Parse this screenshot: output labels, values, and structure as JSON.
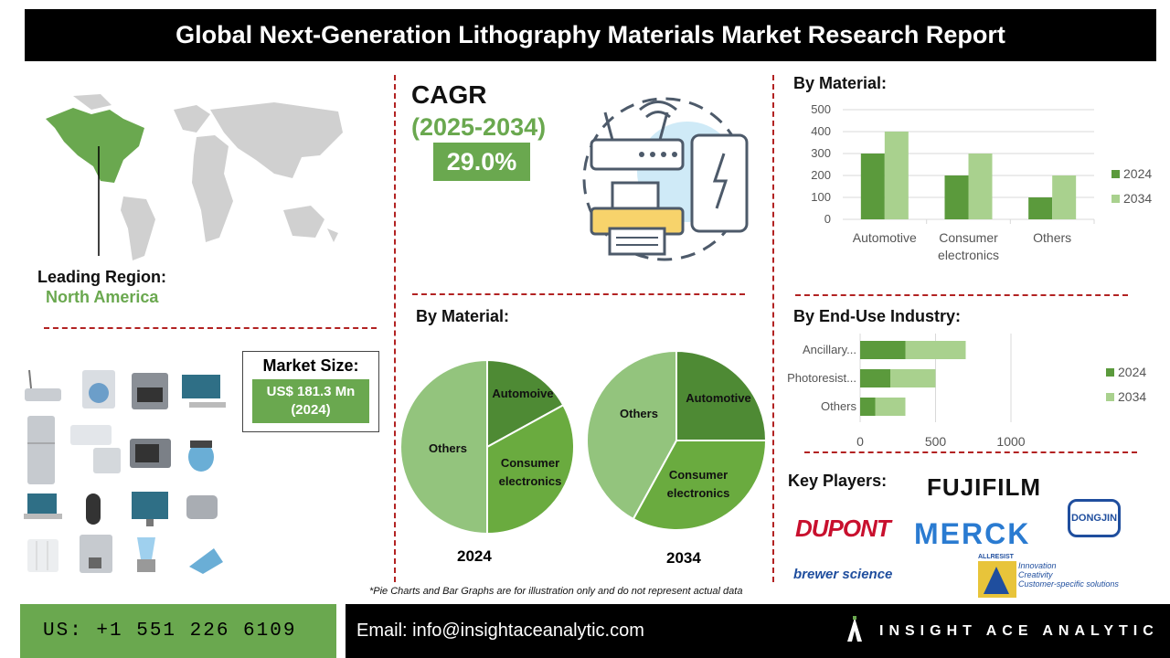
{
  "title": "Global Next-Generation Lithography Materials Market Research Report",
  "region": {
    "label": "Leading Region:",
    "value": "North America"
  },
  "cagr": {
    "label": "CAGR",
    "period": "(2025-2034)",
    "value": "29.0%"
  },
  "market_size": {
    "label": "Market Size:",
    "value": "US$ 181.3 Mn",
    "year": "(2024)"
  },
  "note": "*Pie Charts and Bar Graphs are for illustration only and do not represent actual data",
  "key_players": {
    "label": "Key Players:",
    "logos": [
      "FUJIFILM",
      "DUPONT",
      "MERCK",
      "DONGJIN",
      "brewer science",
      "ALLRESIST",
      "Innovation",
      "Creativity",
      "Customer-specific solutions"
    ]
  },
  "footer": {
    "phone": "US: +1 551 226 6109",
    "email": "Email: info@insightaceanalytic.com",
    "brand": "INSIGHT ACE ANALYTIC"
  },
  "colors": {
    "dark_green": "#5b9a3c",
    "light_green": "#a9d18e",
    "mid_green": "#6aa84f",
    "pie_light": "#93c47d",
    "pie_dark": "#4e8a34",
    "pie_mid": "#6aab3f",
    "dash": "#b22222"
  },
  "chart_data": [
    {
      "type": "bar",
      "title": "By Material:",
      "categories": [
        "Automotive",
        "Consumer electronics",
        "Others"
      ],
      "series": [
        {
          "name": "2024",
          "values": [
            300,
            200,
            100
          ]
        },
        {
          "name": "2034",
          "values": [
            400,
            300,
            200
          ]
        }
      ],
      "ylim": [
        0,
        500
      ],
      "yticks": [
        0,
        100,
        200,
        300,
        400,
        500
      ],
      "legend": "right",
      "grid": true
    },
    {
      "type": "pie",
      "title": "By Material:",
      "year": "2024",
      "slices": [
        {
          "label": "Automoive",
          "value": 17
        },
        {
          "label": "Consumer electronics",
          "value": 33
        },
        {
          "label": "Others",
          "value": 50
        }
      ]
    },
    {
      "type": "pie",
      "year": "2034",
      "slices": [
        {
          "label": "Automotive",
          "value": 25
        },
        {
          "label": "Consumer electronics",
          "value": 33
        },
        {
          "label": "Others",
          "value": 42
        }
      ]
    },
    {
      "type": "bar",
      "orientation": "horizontal",
      "stacked": true,
      "title": "By End-Use Industry:",
      "categories": [
        "Ancillary...",
        "Photoresist...",
        "Others"
      ],
      "series": [
        {
          "name": "2024",
          "values": [
            300,
            200,
            100
          ]
        },
        {
          "name": "2034",
          "values": [
            400,
            300,
            200
          ]
        }
      ],
      "xlim": [
        0,
        1400
      ],
      "xticks": [
        0,
        500,
        1000
      ],
      "legend": "right",
      "grid": true
    }
  ]
}
